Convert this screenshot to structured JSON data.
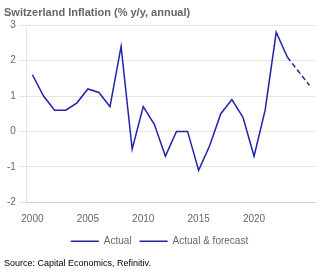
{
  "chart_data": {
    "type": "line",
    "title": "Switzerland Inflation (% y/y, annual)",
    "annotations": [
      "Source: Capital Economics, Refinitiv."
    ],
    "series": [
      {
        "name": "Actual",
        "color": "#2222aa",
        "line_style": "solid",
        "x": [
          2000,
          2001,
          2002,
          2003,
          2004,
          2005,
          2006,
          2007,
          2008,
          2009,
          2010,
          2011,
          2012,
          2013,
          2014,
          2015,
          2016,
          2017,
          2018,
          2019,
          2020,
          2021,
          2022,
          2023
        ],
        "values": [
          1.6,
          1.0,
          0.6,
          0.6,
          0.8,
          1.2,
          1.1,
          0.7,
          2.4,
          -0.5,
          0.7,
          0.2,
          -0.7,
          0.0,
          0.0,
          -1.1,
          -0.4,
          0.5,
          0.9,
          0.4,
          -0.7,
          0.6,
          2.8,
          2.1
        ]
      },
      {
        "name": "Actual & forecast",
        "color": "#2222aa",
        "line_style": "dashed",
        "x": [
          2023,
          2024,
          2025
        ],
        "values": [
          2.1,
          1.7,
          1.3
        ]
      }
    ],
    "xlim": [
      1999.5,
      2025.5
    ],
    "xticks": [
      2000,
      2005,
      2010,
      2015,
      2020
    ],
    "ylim": [
      -2,
      3
    ],
    "yticks": [
      -2,
      -1,
      0,
      1,
      2,
      3
    ],
    "grid": "y",
    "legend": "bottom"
  }
}
